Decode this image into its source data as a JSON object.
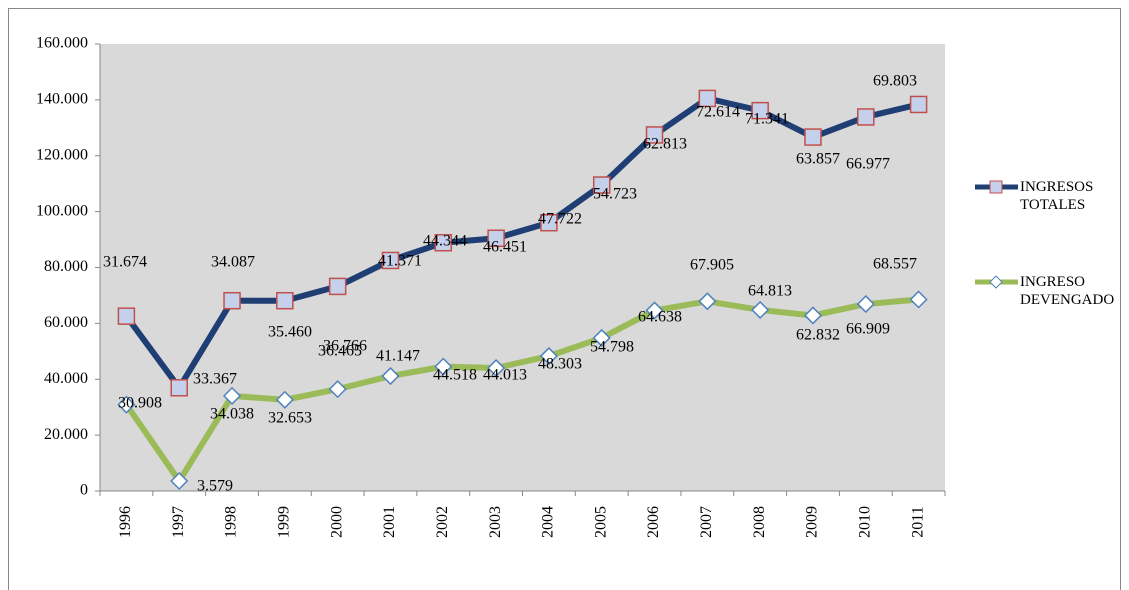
{
  "chart_data": {
    "type": "line",
    "stacked": true,
    "categories": [
      "1996",
      "1997",
      "1998",
      "1999",
      "2000",
      "2001",
      "2002",
      "2003",
      "2004",
      "2005",
      "2006",
      "2007",
      "2008",
      "2009",
      "2010",
      "2011"
    ],
    "series": [
      {
        "name": "INGRESO DEVENGADO",
        "color": "#9bbb59",
        "marker_color": "#4f81bd",
        "values": [
          30908,
          3579,
          34038,
          32653,
          36465,
          41147,
          44518,
          44013,
          48303,
          54798,
          64638,
          67905,
          64813,
          62832,
          66909,
          68557
        ],
        "value_labels": [
          "30.908",
          "3.579",
          "34.038",
          "32.653",
          "36.465",
          "41.147",
          "44.518",
          "44.013",
          "48.303",
          "54.798",
          "64.638",
          "67.905",
          "64.813",
          "62.832",
          "66.909",
          "68.557"
        ]
      },
      {
        "name": "INGRESOS TOTALES",
        "color": "#1f3f74",
        "marker_color": "#c0504d",
        "values": [
          31674,
          33367,
          34087,
          35460,
          36766,
          41371,
          44344,
          46451,
          47722,
          54723,
          62813,
          72614,
          71341,
          63857,
          66977,
          69803
        ],
        "value_labels": [
          "31.674",
          "33.367",
          "34.087",
          "35.460",
          "36.766",
          "41.371",
          "44.344",
          "46.451",
          "47.722",
          "54.723",
          "62.813",
          "72.614",
          "71.341",
          "63.857",
          "66.977",
          "69.803"
        ]
      }
    ],
    "ylim": [
      0,
      160000
    ],
    "yticks": [
      0,
      {
        "value": 20000,
        "label": "20.000"
      },
      {
        "value": 40000,
        "label": "40.000"
      },
      {
        "value": 60000,
        "label": "60.000"
      },
      {
        "value": 80000,
        "label": "80.000"
      },
      {
        "value": 100000,
        "label": "100.000"
      },
      {
        "value": 120000,
        "label": "120.000"
      },
      {
        "value": 140000,
        "label": "140.000"
      },
      {
        "value": 160000,
        "label": "160.000"
      }
    ],
    "legend": "right"
  }
}
